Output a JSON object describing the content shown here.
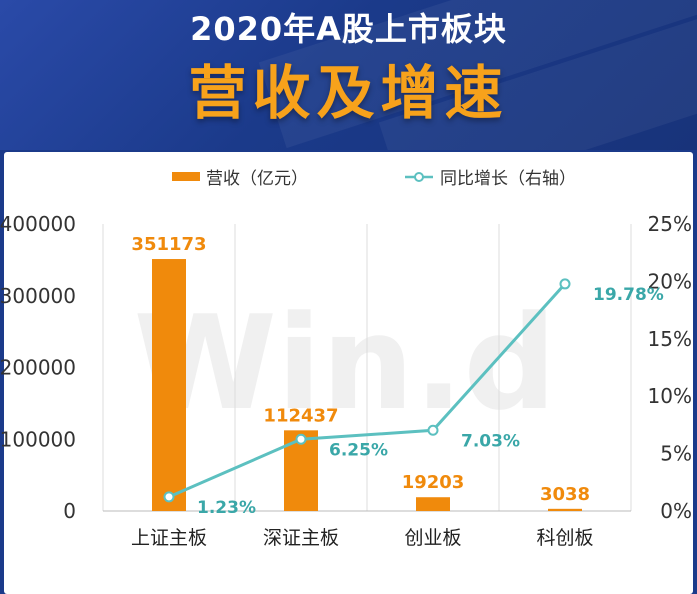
{
  "header": {
    "title_line1": "2020年A股上市板块",
    "title_line2": "营收及增速"
  },
  "watermark": "Win.d",
  "colors": {
    "bar": "#f08a0c",
    "line": "#5cc0c0",
    "header_bg": "#1b3a8a",
    "title_accent": "#f7a21b"
  },
  "chart_data": {
    "type": "bar",
    "categories": [
      "上证主板",
      "深证主板",
      "创业板",
      "科创板"
    ],
    "series": [
      {
        "name": "营收（亿元）",
        "type": "bar",
        "axis": "left",
        "values": [
          351173,
          112437,
          19203,
          3038
        ],
        "labels": [
          "351173",
          "112437",
          "19203",
          "3038"
        ]
      },
      {
        "name": "同比增长（右轴）",
        "type": "line",
        "axis": "right",
        "values": [
          1.23,
          6.25,
          7.03,
          19.78
        ],
        "labels": [
          "1.23%",
          "6.25%",
          "7.03%",
          "19.78%"
        ]
      }
    ],
    "ylim_left": [
      0,
      400000
    ],
    "yticks_left": [
      "0",
      "100000",
      "200000",
      "300000",
      "400000"
    ],
    "ylim_right": [
      0,
      25
    ],
    "yticks_right": [
      "0%",
      "5%",
      "10%",
      "15%",
      "20%",
      "25%"
    ],
    "grid": "vertical",
    "legend_position": "top"
  }
}
